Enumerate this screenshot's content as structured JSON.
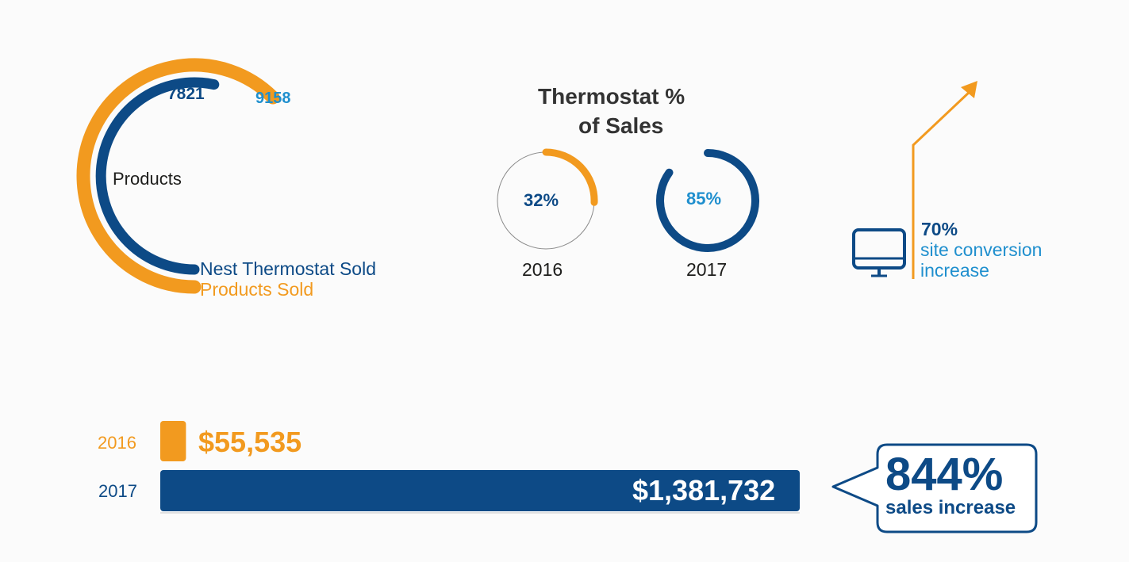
{
  "colors": {
    "orange": "#f29a1f",
    "navy": "#0d4a86",
    "sky": "#1f8fce",
    "gray": "#8a8a8a",
    "text": "#1d1d1b"
  },
  "chart_data": [
    {
      "type": "radial-bar",
      "center_label": "Products",
      "series": [
        {
          "name": "Products Sold",
          "value": 9158,
          "color": "#f29a1f"
        },
        {
          "name": "Nest Thermostat Sold",
          "value": 7821,
          "color": "#0d4a86"
        }
      ],
      "value_labels": [
        "9158",
        "7821"
      ]
    },
    {
      "type": "donut",
      "title": "Thermostat % of Sales",
      "title_lines": [
        "Thermostat %",
        "of Sales"
      ],
      "categories": [
        "2016",
        "2017"
      ],
      "values": [
        32,
        85
      ],
      "value_labels": [
        "32%",
        "85%"
      ],
      "unit": "%"
    },
    {
      "type": "bar",
      "orientation": "horizontal",
      "categories": [
        "2016",
        "2017"
      ],
      "values": [
        55535,
        1381732
      ],
      "value_labels": [
        "$55,535",
        "$1,381,732"
      ]
    }
  ],
  "callouts": {
    "conversion": {
      "value": "70%",
      "line1": "site conversion",
      "line2": "increase",
      "icon": "monitor-icon"
    },
    "sales_increase": {
      "value": "844%",
      "label": "sales increase"
    }
  }
}
